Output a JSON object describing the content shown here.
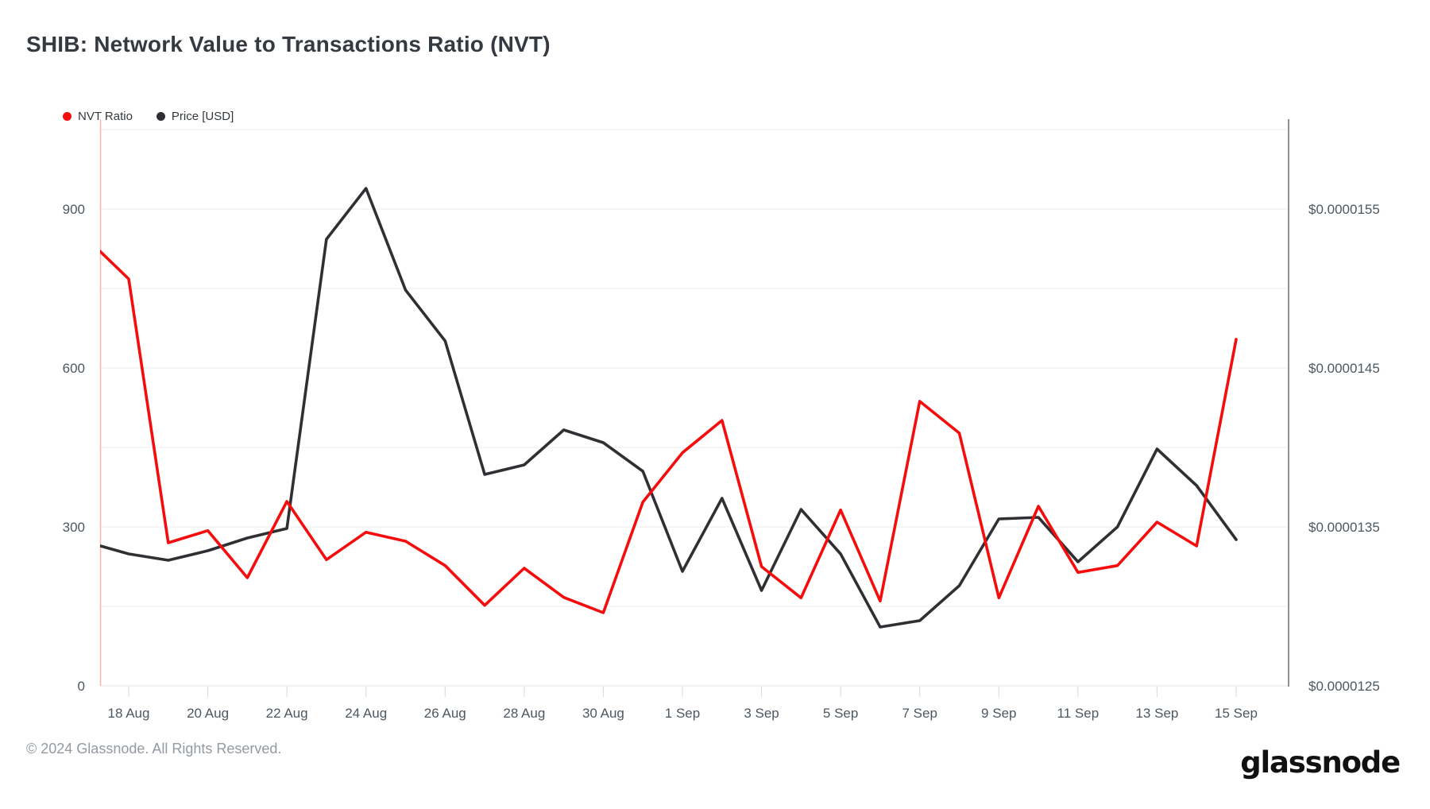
{
  "header": {
    "title": "SHIB: Network Value to Transactions Ratio (NVT)"
  },
  "legend": [
    {
      "label": "NVT Ratio",
      "color": "#f50d0d"
    },
    {
      "label": "Price [USD]",
      "color": "#303034"
    }
  ],
  "footer": {
    "copyright": "© 2024 Glassnode. All Rights Reserved.",
    "logo_text": "glassnode"
  },
  "chart_data": {
    "type": "line",
    "title": "SHIB: Network Value to Transactions Ratio (NVT)",
    "legend_position": "top-left",
    "grid": "horizontal",
    "categories": [
      "17 Aug",
      "18 Aug",
      "19 Aug",
      "20 Aug",
      "21 Aug",
      "22 Aug",
      "23 Aug",
      "24 Aug",
      "25 Aug",
      "26 Aug",
      "27 Aug",
      "28 Aug",
      "29 Aug",
      "30 Aug",
      "31 Aug",
      "1 Sep",
      "2 Sep",
      "3 Sep",
      "4 Sep",
      "5 Sep",
      "6 Sep",
      "7 Sep",
      "8 Sep",
      "9 Sep",
      "10 Sep",
      "11 Sep",
      "12 Sep",
      "13 Sep",
      "14 Sep",
      "15 Sep"
    ],
    "series": [
      {
        "name": "NVT Ratio",
        "axis": "left",
        "color": "#f50d0d",
        "values": [
          840,
          768,
          270,
          293,
          204,
          348,
          238,
          290,
          273,
          227,
          152,
          222,
          167,
          138,
          347,
          440,
          501,
          225,
          166,
          332,
          160,
          537,
          477,
          166,
          339,
          214,
          227,
          309,
          264,
          654
        ]
      },
      {
        "name": "Price [USD]",
        "axis": "right",
        "color": "#303034",
        "values": [
          1.34e-05,
          1.333e-05,
          1.329e-05,
          1.335e-05,
          1.343e-05,
          1.349e-05,
          1.531e-05,
          1.563e-05,
          1.499e-05,
          1.467e-05,
          1.383e-05,
          1.389e-05,
          1.411e-05,
          1.403e-05,
          1.385e-05,
          1.322e-05,
          1.368e-05,
          1.31e-05,
          1.361e-05,
          1.333e-05,
          1.287e-05,
          1.291e-05,
          1.313e-05,
          1.355e-05,
          1.356e-05,
          1.328e-05,
          1.35e-05,
          1.399e-05,
          1.376e-05,
          1.342e-05
        ]
      }
    ],
    "left_axis": {
      "ticks": [
        0,
        300,
        600,
        900
      ],
      "gridlines": [
        0,
        150,
        300,
        450,
        600,
        750,
        900,
        1050
      ],
      "range": [
        0,
        1070
      ]
    },
    "right_axis": {
      "ticks": [
        {
          "label": "$0.0000125",
          "value": 1.25e-05
        },
        {
          "label": "$0.0000135",
          "value": 1.35e-05
        },
        {
          "label": "$0.0000145",
          "value": 1.45e-05
        },
        {
          "label": "$0.0000155",
          "value": 1.55e-05
        }
      ],
      "range": [
        1.25e-05,
        1.61e-05
      ]
    },
    "x_axis": {
      "tick_labels": [
        "18 Aug",
        "20 Aug",
        "22 Aug",
        "24 Aug",
        "26 Aug",
        "28 Aug",
        "30 Aug",
        "1 Sep",
        "3 Sep",
        "5 Sep",
        "7 Sep",
        "9 Sep",
        "11 Sep",
        "13 Sep",
        "15 Sep"
      ],
      "tick_step": 2,
      "first_tick_index": 1
    }
  }
}
